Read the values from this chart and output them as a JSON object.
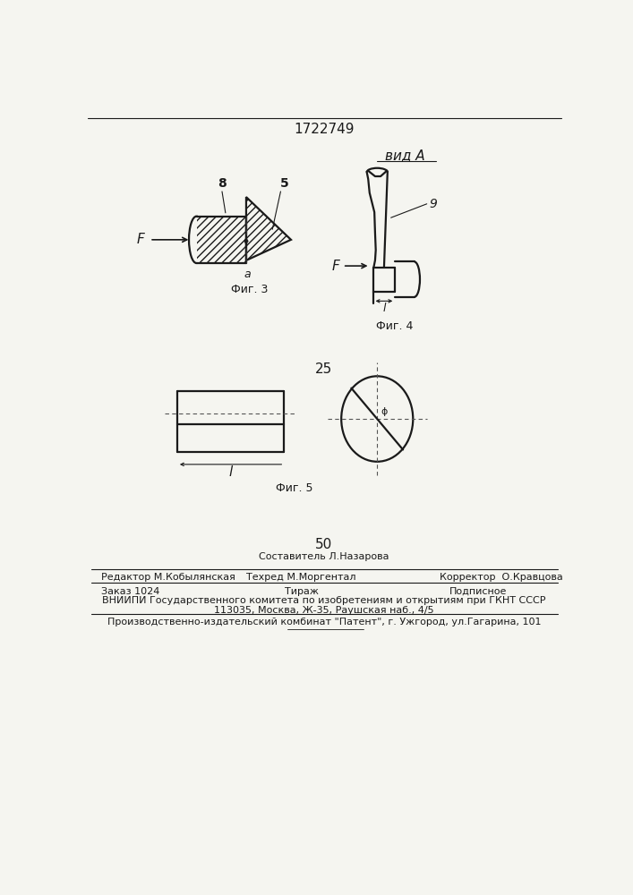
{
  "title": "1722749",
  "fig3_label": "Фиг. 3",
  "fig4_label": "Фиг. 4",
  "fig5_label": "Фиг. 5",
  "vid_a_label": "вид A",
  "number_25": "25",
  "number_50": "50",
  "background_color": "#f5f5f0",
  "line_color": "#1a1a1a",
  "footer_line1_top": "Составитель Л.Назарова",
  "footer_line1_left": "Редактор М.Кобылянская",
  "footer_line1_center": "Техред М.Моргентал",
  "footer_line1_right": "Корректор  О.Кравцова",
  "footer_line2_left": "Заказ 1024",
  "footer_line2_center": "Тираж",
  "footer_line2_right": "Подписное",
  "footer_line3": "ВНИИПИ Государственного комитета по изобретениям и открытиям при ГКНТ СССР",
  "footer_line4": "113035, Москва, Ж-35, Раушская наб., 4/5",
  "footer_line5": "Производственно-издательский комбинат \"Патент\", г. Ужгород, ул.Гагарина, 101"
}
